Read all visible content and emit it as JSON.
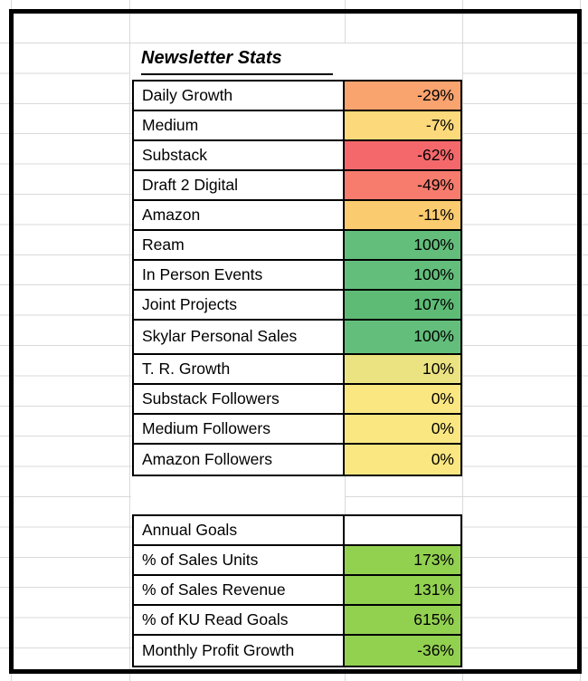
{
  "sheet": {
    "title": "Newsletter Stats",
    "newsletter_table": {
      "rows": [
        {
          "label": "Daily Growth",
          "value": "-29%",
          "color": "#F9A36F"
        },
        {
          "label": "Medium",
          "value": "-7%",
          "color": "#FCD97A"
        },
        {
          "label": "Substack",
          "value": "-62%",
          "color": "#F4686C"
        },
        {
          "label": "Draft 2 Digital",
          "value": "-49%",
          "color": "#F77C6E"
        },
        {
          "label": "Amazon",
          "value": "-11%",
          "color": "#FACB6F"
        },
        {
          "label": "Ream",
          "value": "100%",
          "color": "#63BE7B"
        },
        {
          "label": "In Person Events",
          "value": "100%",
          "color": "#63BE7B"
        },
        {
          "label": "Joint Projects",
          "value": "107%",
          "color": "#5DBB75"
        },
        {
          "label": "Skylar Personal Sales",
          "value": "100%",
          "color": "#63BE7B"
        },
        {
          "label": "T. R. Growth",
          "value": "10%",
          "color": "#EBE281"
        },
        {
          "label": "Substack Followers",
          "value": "0%",
          "color": "#FBE781"
        },
        {
          "label": "Medium Followers",
          "value": "0%",
          "color": "#FBE781"
        },
        {
          "label": "Amazon Followers",
          "value": "0%",
          "color": "#FBE781"
        }
      ]
    },
    "goals_table": {
      "header": "Annual Goals",
      "header_value": "",
      "accent_green": "#92D050",
      "rows": [
        {
          "label": "% of Sales Units",
          "value": "173%",
          "color": "#92D050"
        },
        {
          "label": "% of Sales Revenue",
          "value": "131%",
          "color": "#92D050"
        },
        {
          "label": "% of KU Read Goals",
          "value": "615%",
          "color": "#92D050"
        },
        {
          "label": "Monthly Profit Growth",
          "value": "-36%",
          "color": "#92D050"
        }
      ]
    }
  }
}
